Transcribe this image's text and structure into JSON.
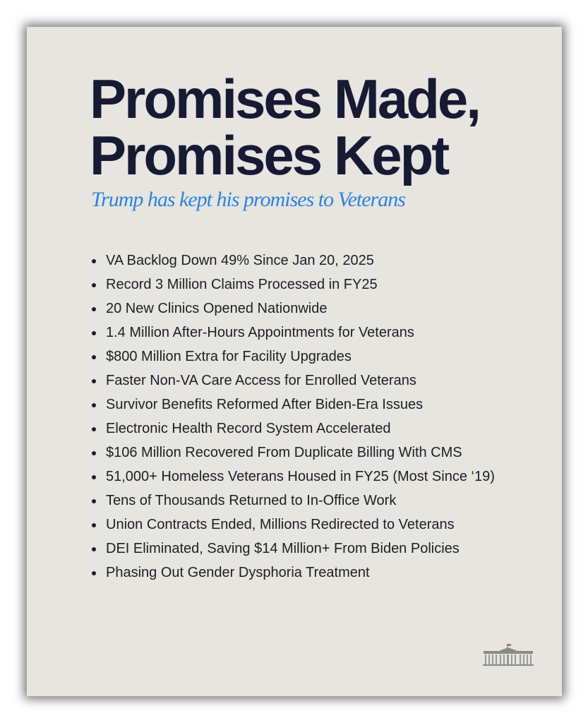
{
  "title_lines": [
    "Promises Made,",
    "Promises Kept"
  ],
  "subtitle": "Trump has kept his promises to Veterans",
  "items": [
    "VA Backlog Down 49% Since Jan 20, 2025",
    "Record 3 Million Claims Processed in FY25",
    "20 New Clinics Opened Nationwide",
    "1.4 Million After-Hours Appointments for Veterans",
    "$800 Million Extra for Facility Upgrades",
    "Faster Non-VA Care Access for Enrolled Veterans",
    "Survivor Benefits Reformed After Biden-Era Issues",
    "Electronic Health Record System Accelerated",
    "$106 Million Recovered From Duplicate Billing With CMS",
    "51,000+ Homeless Veterans Housed in FY25 (Most Since ‘19)",
    "Tens of Thousands Returned to In-Office Work",
    "Union Contracts Ended, Millions Redirected to Veterans",
    "DEI Eliminated, Saving $14 Million+ From Biden Policies",
    "Phasing Out Gender Dysphoria Treatment"
  ],
  "logo": "white-house-icon",
  "colors": {
    "background": "#e7e5e0",
    "title": "#171a33",
    "subtitle": "#2b83dc"
  }
}
